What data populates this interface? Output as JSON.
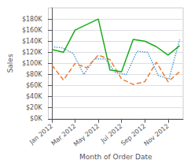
{
  "chart_data": {
    "type": "line",
    "xlabel": "Month of Order Date",
    "ylabel": "Sales",
    "xlim": [
      -0.3,
      11.3
    ],
    "xticks": [
      {
        "value": 0,
        "label": "Jan 2012"
      },
      {
        "value": 2,
        "label": "Mar 2012"
      },
      {
        "value": 4,
        "label": "May 2012"
      },
      {
        "value": 6,
        "label": "Jul 2012"
      },
      {
        "value": 8,
        "label": "Sep 2012"
      },
      {
        "value": 10,
        "label": "Nov 2012"
      }
    ],
    "ylim": [
      0,
      200000
    ],
    "yticks": [
      {
        "value": 0,
        "label": "$0K"
      },
      {
        "value": 20000,
        "label": "$20K"
      },
      {
        "value": 40000,
        "label": "$40K"
      },
      {
        "value": 60000,
        "label": "$60K"
      },
      {
        "value": 80000,
        "label": "$80K"
      },
      {
        "value": 100000,
        "label": "$100K"
      },
      {
        "value": 120000,
        "label": "$120K"
      },
      {
        "value": 140000,
        "label": "$140K"
      },
      {
        "value": 160000,
        "label": "$160K"
      },
      {
        "value": 180000,
        "label": "$180K"
      }
    ],
    "grid": true,
    "series": [
      {
        "color": "#5b9bd5",
        "line_style": "dotted",
        "x": [
          0,
          0.9166666666666666,
          1.8333333333333333,
          2.75,
          3.6666666666666665,
          4.583333333333333,
          5.5,
          6.416666666666667,
          7.333333333333333,
          8.25,
          9.166666666666666,
          10.083333333333334,
          11
        ],
        "values": [
          130000,
          128000,
          118000,
          80000,
          108000,
          108000,
          83000,
          80000,
          122000,
          120000,
          78000,
          72000,
          143000
        ]
      },
      {
        "color": "#ed7d31",
        "line_style": "dashed",
        "x": [
          0,
          1,
          2,
          3,
          4,
          5,
          6,
          7,
          8,
          9,
          10,
          11
        ],
        "values": [
          97000,
          70000,
          100000,
          92000,
          115000,
          107000,
          72000,
          62000,
          67000,
          102000,
          67000,
          85000
        ]
      },
      {
        "color": "#1aab1a",
        "line_style": "solid",
        "x": [
          0,
          1,
          2,
          3,
          4,
          5,
          6,
          7,
          8,
          9,
          10,
          11
        ],
        "values": [
          125000,
          120000,
          160000,
          170000,
          180000,
          88000,
          85000,
          143000,
          140000,
          130000,
          115000,
          132000
        ]
      }
    ]
  }
}
